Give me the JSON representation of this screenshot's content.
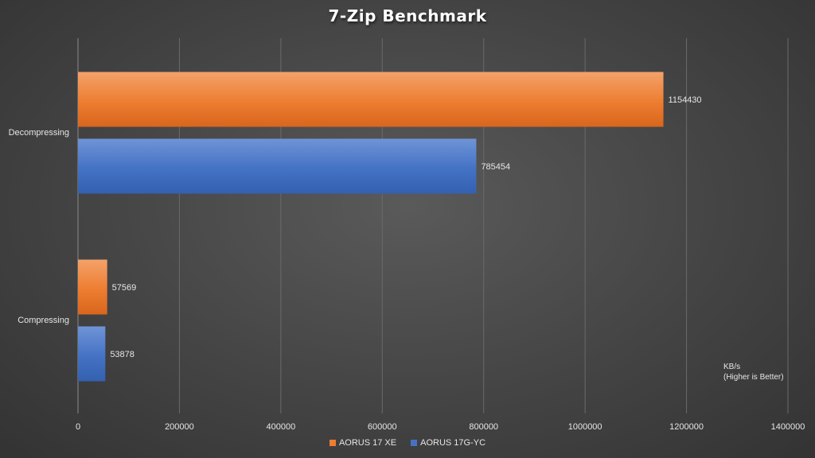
{
  "chart_data": {
    "type": "bar",
    "orientation": "horizontal",
    "title": "7-Zip Benchmark",
    "categories": [
      "Decompressing",
      "Compressing"
    ],
    "series": [
      {
        "name": "AORUS 17 XE",
        "color": "#ed7d31",
        "values": [
          1154430,
          57569
        ]
      },
      {
        "name": "AORUS 17G-YC",
        "color": "#4472c4",
        "values": [
          785454,
          53878
        ]
      }
    ],
    "xlim": [
      0,
      1400000
    ],
    "xticks": [
      0,
      200000,
      400000,
      600000,
      800000,
      1000000,
      1200000,
      1400000
    ],
    "unit_note": [
      "KB/s",
      "(Higher is Better)"
    ],
    "grid": true,
    "legend": "bottom"
  }
}
